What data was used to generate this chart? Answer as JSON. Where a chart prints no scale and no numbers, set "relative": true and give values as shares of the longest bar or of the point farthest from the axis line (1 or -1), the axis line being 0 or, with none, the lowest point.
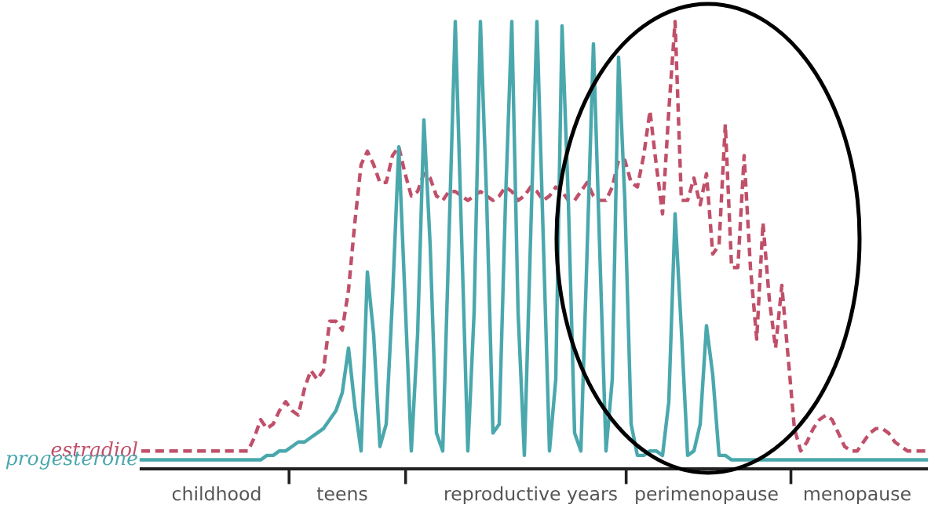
{
  "chart_data": {
    "type": "line",
    "relative": true,
    "categories": [
      null,
      null,
      null,
      null,
      null,
      null,
      null,
      null,
      null,
      null,
      null,
      null,
      "childhood",
      null,
      null,
      null,
      null,
      null,
      null,
      null,
      null,
      null,
      null,
      null,
      null,
      null,
      null,
      null,
      null,
      null,
      null,
      null,
      "teens",
      null,
      null,
      null,
      null,
      null,
      null,
      null,
      null,
      null,
      null,
      null,
      null,
      null,
      null,
      null,
      null,
      null,
      null,
      null,
      null,
      null,
      null,
      null,
      null,
      null,
      null,
      null,
      null,
      null,
      "reproductive years",
      null,
      null,
      null,
      null,
      null,
      null,
      null,
      null,
      null,
      null,
      null,
      null,
      null,
      null,
      null,
      null,
      null,
      null,
      null,
      null,
      null,
      null,
      null,
      null,
      null,
      null,
      null,
      "perimenopause",
      null,
      null,
      null,
      null,
      null,
      null,
      null,
      null,
      null,
      null,
      null,
      null,
      null,
      null,
      null,
      null,
      null,
      null,
      null,
      null,
      null,
      null,
      null,
      "menopause",
      null,
      null,
      null,
      null,
      null,
      null,
      null,
      null,
      null,
      null,
      null
    ],
    "grid": false,
    "legend": false,
    "marker": "none",
    "series": [
      {
        "name": "estradiol",
        "color": "#c0506a",
        "line_style": "dashed",
        "values": [
          0.04,
          0.04,
          0.04,
          0.04,
          0.04,
          0.04,
          0.04,
          0.04,
          0.04,
          0.04,
          0.04,
          0.04,
          0.04,
          0.04,
          0.04,
          0.04,
          0.04,
          0.04,
          0.07,
          0.11,
          0.09,
          0.1,
          0.13,
          0.15,
          0.13,
          0.12,
          0.18,
          0.22,
          0.2,
          0.22,
          0.33,
          0.33,
          0.31,
          0.4,
          0.55,
          0.68,
          0.71,
          0.68,
          0.64,
          0.64,
          0.7,
          0.72,
          0.66,
          0.61,
          0.62,
          0.66,
          0.65,
          0.61,
          0.6,
          0.62,
          0.62,
          0.61,
          0.6,
          0.61,
          0.62,
          0.61,
          0.6,
          0.61,
          0.63,
          0.62,
          0.6,
          0.61,
          0.63,
          0.62,
          0.6,
          0.61,
          0.63,
          0.62,
          0.6,
          0.6,
          0.62,
          0.64,
          0.61,
          0.6,
          0.6,
          0.63,
          0.69,
          0.69,
          0.64,
          0.63,
          0.7,
          0.8,
          0.68,
          0.57,
          0.8,
          1.0,
          0.6,
          0.6,
          0.65,
          0.59,
          0.66,
          0.48,
          0.5,
          0.77,
          0.45,
          0.45,
          0.7,
          0.45,
          0.29,
          0.55,
          0.38,
          0.27,
          0.41,
          0.25,
          0.09,
          0.04,
          0.06,
          0.09,
          0.11,
          0.12,
          0.11,
          0.08,
          0.05,
          0.04,
          0.04,
          0.06,
          0.08,
          0.09,
          0.09,
          0.08,
          0.06,
          0.05,
          0.04,
          0.04,
          0.04,
          0.04
        ]
      },
      {
        "name": "progesterone",
        "color": "#4aa8ad",
        "line_style": "solid",
        "values": [
          0.02,
          0.02,
          0.02,
          0.02,
          0.02,
          0.02,
          0.02,
          0.02,
          0.02,
          0.02,
          0.02,
          0.02,
          0.02,
          0.02,
          0.02,
          0.02,
          0.02,
          0.02,
          0.02,
          0.02,
          0.03,
          0.03,
          0.04,
          0.04,
          0.05,
          0.06,
          0.06,
          0.07,
          0.08,
          0.09,
          0.11,
          0.13,
          0.17,
          0.27,
          0.14,
          0.04,
          0.44,
          0.3,
          0.05,
          0.1,
          0.38,
          0.72,
          0.38,
          0.04,
          0.3,
          0.78,
          0.5,
          0.08,
          0.04,
          0.52,
          1.0,
          0.52,
          0.04,
          0.35,
          1.0,
          0.6,
          0.08,
          0.1,
          0.6,
          1.0,
          0.35,
          0.03,
          0.52,
          1.0,
          0.52,
          0.04,
          0.2,
          0.99,
          0.6,
          0.08,
          0.04,
          0.49,
          0.95,
          0.49,
          0.04,
          0.2,
          0.92,
          0.6,
          0.1,
          0.03,
          0.03,
          0.04,
          0.04,
          0.03,
          0.15,
          0.57,
          0.31,
          0.03,
          0.04,
          0.1,
          0.32,
          0.21,
          0.03,
          0.03,
          0.02,
          0.02,
          0.02,
          0.02,
          0.02,
          0.02,
          0.02,
          0.02,
          0.02,
          0.02,
          0.02,
          0.02,
          0.02,
          0.02,
          0.02,
          0.02,
          0.02,
          0.02,
          0.02,
          0.02,
          0.02,
          0.02,
          0.02,
          0.02,
          0.02,
          0.02,
          0.02,
          0.02,
          0.02,
          0.02,
          0.02,
          0.02
        ]
      }
    ]
  }
}
